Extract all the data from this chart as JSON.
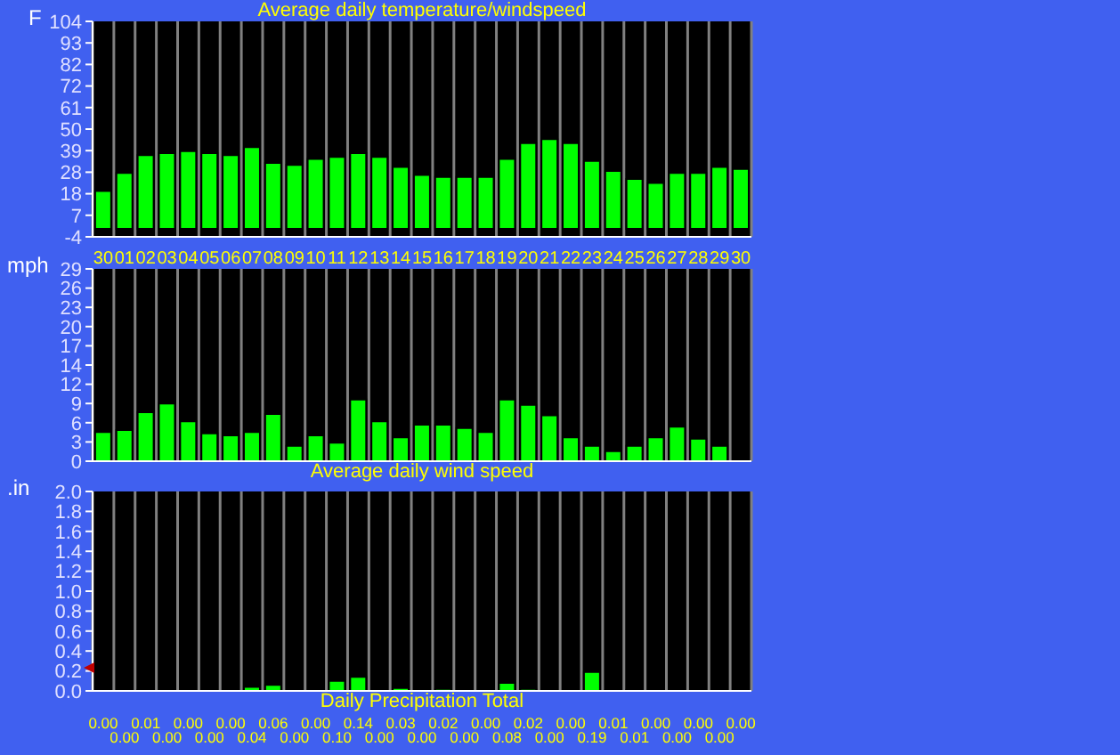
{
  "chart_data": [
    {
      "type": "bar",
      "title": "Average daily temperature/windspeed",
      "ylabel": "F",
      "categories": [
        "30",
        "01",
        "02",
        "03",
        "04",
        "05",
        "06",
        "07",
        "08",
        "09",
        "10",
        "11",
        "12",
        "13",
        "14",
        "15",
        "16",
        "17",
        "18",
        "19",
        "20",
        "21",
        "22",
        "23",
        "24",
        "25",
        "26",
        "27",
        "28",
        "29",
        "30"
      ],
      "color": "#00ff00",
      "values": [
        19,
        28,
        37,
        38,
        39,
        38,
        37,
        41,
        33,
        32,
        35,
        36,
        38,
        36,
        31,
        27,
        26,
        26,
        26,
        35,
        43,
        45,
        43,
        34,
        29,
        25,
        23,
        28,
        28,
        31,
        30
      ],
      "ylim": [
        -4,
        104
      ],
      "yticks": [
        -4,
        {
          "value": 6.8,
          "label": "7"
        },
        {
          "value": 17.6,
          "label": "18"
        },
        {
          "value": 28.4,
          "label": "28"
        },
        {
          "value": 39.2,
          "label": "39"
        },
        50,
        {
          "value": 60.8,
          "label": "61"
        },
        {
          "value": 71.6,
          "label": "72"
        },
        {
          "value": 82.4,
          "label": "82"
        },
        {
          "value": 93.2,
          "label": "93"
        },
        104
      ],
      "grid": "x"
    },
    {
      "type": "bar",
      "title": "Average daily wind speed",
      "ylabel": "mph",
      "categories": [
        "30",
        "01",
        "02",
        "03",
        "04",
        "05",
        "06",
        "07",
        "08",
        "09",
        "10",
        "11",
        "12",
        "13",
        "14",
        "15",
        "16",
        "17",
        "18",
        "19",
        "20",
        "21",
        "22",
        "23",
        "24",
        "25",
        "26",
        "27",
        "28",
        "29",
        "30"
      ],
      "color": "#00ff00",
      "values": [
        4.4,
        4.7,
        7.4,
        8.7,
        6,
        4.2,
        3.9,
        4.4,
        7.1,
        2.3,
        3.9,
        2.8,
        9.3,
        6,
        3.6,
        5.5,
        5.5,
        5,
        4.4,
        9.3,
        8.5,
        6.9,
        3.6,
        2.3,
        1.5,
        2.3,
        3.6,
        5.2,
        3.4,
        2.3,
        0
      ],
      "ylim": [
        0,
        29
      ],
      "yticks": [
        0,
        {
          "value": 2.9,
          "label": "3"
        },
        {
          "value": 5.8,
          "label": "6"
        },
        {
          "value": 8.7,
          "label": "9"
        },
        {
          "value": 11.6,
          "label": "12"
        },
        {
          "value": 14.5,
          "label": "14"
        },
        {
          "value": 17.4,
          "label": "17"
        },
        {
          "value": 20.3,
          "label": "20"
        },
        {
          "value": 23.2,
          "label": "23"
        },
        {
          "value": 26.1,
          "label": "26"
        },
        29
      ],
      "grid": "x",
      "tick_labels": "y"
    },
    {
      "type": "bar",
      "title": "Daily Precipitation Total",
      "ylabel": ".in",
      "categories": [
        "30",
        "01",
        "02",
        "03",
        "04",
        "05",
        "06",
        "07",
        "08",
        "09",
        "10",
        "11",
        "12",
        "13",
        "14",
        "15",
        "16",
        "17",
        "18",
        "19",
        "20",
        "21",
        "22",
        "23",
        "24",
        "25",
        "26",
        "27",
        "28",
        "29",
        "30"
      ],
      "color": "#00ff00",
      "values": [
        0,
        0,
        0.01,
        0,
        0,
        0,
        0,
        0.04,
        0.06,
        0,
        0,
        0.1,
        0.14,
        0,
        0.03,
        0,
        0.02,
        0,
        0,
        0.08,
        0.02,
        0,
        0,
        0.19,
        0.01,
        0.01,
        0,
        0,
        0,
        0,
        0
      ],
      "value_labels": [
        "0.00",
        "0.00",
        "0.01",
        "0.00",
        "0.00",
        "0.00",
        "0.00",
        "0.04",
        "0.06",
        "0.00",
        "0.00",
        "0.10",
        "0.14",
        "0.00",
        "0.03",
        "0.00",
        "0.02",
        "0.00",
        "0.00",
        "0.08",
        "0.02",
        "0.00",
        "0.00",
        "0.19",
        "0.01",
        "0.01",
        "0.00",
        "0.00",
        "0.00",
        "0.00",
        "0.00"
      ],
      "ylim": [
        0,
        2
      ],
      "yticks": [
        {
          "value": 0,
          "label": "0.0"
        },
        {
          "value": 0.2,
          "label": "0.2"
        },
        {
          "value": 0.4,
          "label": "0.4"
        },
        {
          "value": 0.6,
          "label": "0.6"
        },
        {
          "value": 0.8,
          "label": "0.8"
        },
        {
          "value": 1,
          "label": "1.0"
        },
        {
          "value": 1.2,
          "label": "1.2"
        },
        {
          "value": 1.4,
          "label": "1.4"
        },
        {
          "value": 1.6,
          "label": "1.6"
        },
        {
          "value": 1.8,
          "label": "1.8"
        },
        {
          "value": 2,
          "label": "2.0"
        }
      ],
      "grid": "x",
      "tick_labels": "y"
    }
  ]
}
